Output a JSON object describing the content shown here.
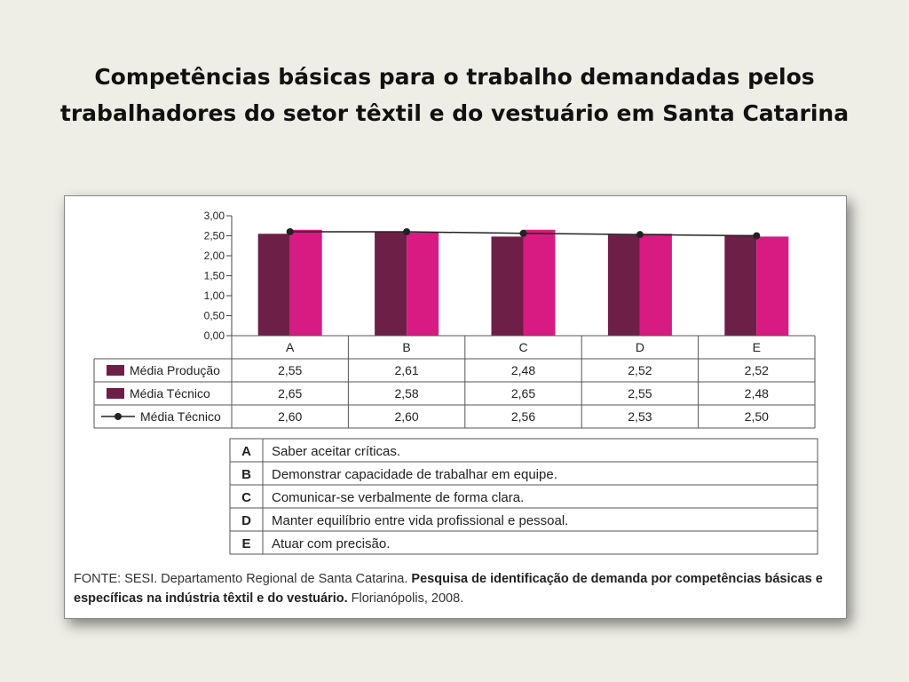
{
  "slide": {
    "title_line1": "Competências básicas para o trabalho demandadas pelos",
    "title_line2": "trabalhadores do setor têxtil e do vestuário em Santa Catarina"
  },
  "chart_data": {
    "type": "bar",
    "categories": [
      "A",
      "B",
      "C",
      "D",
      "E"
    ],
    "ylim": [
      0,
      3
    ],
    "yticks": [
      "3,00",
      "2,50",
      "2,00",
      "1,50",
      "1,00",
      "0,50",
      "0,00"
    ],
    "series": [
      {
        "name": "Média Produção",
        "values": [
          2.55,
          2.61,
          2.48,
          2.52,
          2.52
        ],
        "labels": [
          "2,55",
          "2,61",
          "2,48",
          "2,52",
          "2,52"
        ],
        "color": "#6e1f47",
        "kind": "bar"
      },
      {
        "name": "Média Técnico",
        "values": [
          2.65,
          2.58,
          2.65,
          2.55,
          2.48
        ],
        "labels": [
          "2,65",
          "2,58",
          "2,65",
          "2,55",
          "2,48"
        ],
        "color": "#d81b83",
        "kind": "bar"
      },
      {
        "name": "Média Técnico",
        "values": [
          2.6,
          2.6,
          2.56,
          2.53,
          2.5
        ],
        "labels": [
          "2,60",
          "2,60",
          "2,56",
          "2,53",
          "2,50"
        ],
        "color": "#222222",
        "kind": "line"
      }
    ]
  },
  "legend": [
    {
      "code": "A",
      "text": "Saber aceitar críticas."
    },
    {
      "code": "B",
      "text": "Demonstrar capacidade de trabalhar em equipe."
    },
    {
      "code": "C",
      "text": "Comunicar-se verbalmente de forma clara."
    },
    {
      "code": "D",
      "text": "Manter equilíbrio entre vida profissional e pessoal."
    },
    {
      "code": "E",
      "text": "Atuar com precisão."
    }
  ],
  "source": {
    "prefix": "FONTE: SESI. Departamento Regional de Santa Catarina. ",
    "bold": "Pesquisa de identificação de demanda por competências básicas e específicas na indústria têxtil e do vestuário.",
    "suffix": " Florianópolis, 2008."
  }
}
